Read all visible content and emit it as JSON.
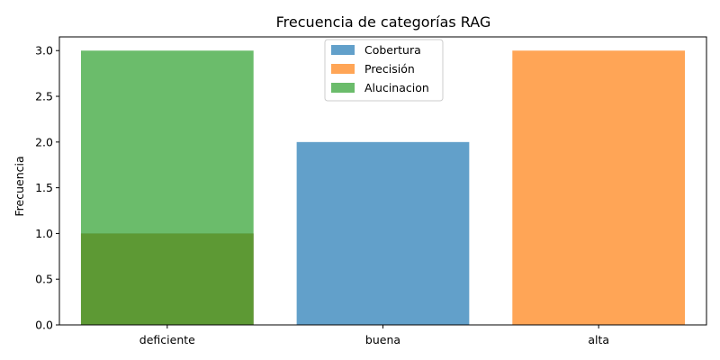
{
  "chart_data": {
    "type": "bar",
    "title": "Frecuencia de categorías RAG",
    "xlabel": "",
    "ylabel": "Frecuencia",
    "categories": [
      "deficiente",
      "buena",
      "alta"
    ],
    "ylim": [
      0,
      3.15
    ],
    "yticks": [
      0.0,
      0.5,
      1.0,
      1.5,
      2.0,
      2.5,
      3.0
    ],
    "ytick_labels": [
      "0.0",
      "0.5",
      "1.0",
      "1.5",
      "2.0",
      "2.5",
      "3.0"
    ],
    "bar_opacity": 0.7,
    "overlapping": true,
    "series": [
      {
        "name": "Cobertura",
        "color": "#1f77b4",
        "values": [
          1,
          2,
          0
        ]
      },
      {
        "name": "Precisión",
        "color": "#ff7f0e",
        "values": [
          1,
          0,
          3
        ]
      },
      {
        "name": "Alucinacion",
        "color": "#2ca02c",
        "values": [
          3,
          0,
          0
        ]
      }
    ],
    "legend": {
      "placement": "top-center"
    },
    "grid": false
  }
}
